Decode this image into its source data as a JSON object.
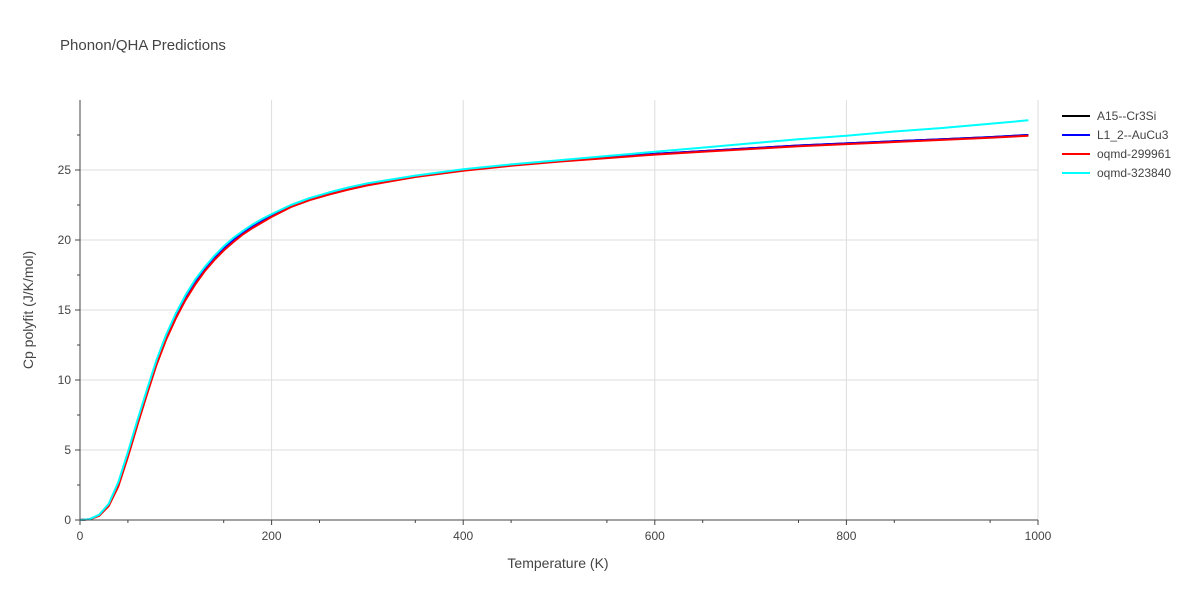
{
  "chart_data": {
    "type": "line",
    "title": "Phonon/QHA Predictions",
    "xlabel": "Temperature (K)",
    "ylabel": "Cp polyfit (J/K/mol)",
    "xlim": [
      0,
      1000
    ],
    "ylim": [
      0,
      30
    ],
    "xticks": [
      0,
      200,
      400,
      600,
      800,
      1000
    ],
    "xtick_labels": [
      "0",
      "200",
      "400",
      "600",
      "800",
      "1000"
    ],
    "yticks": [
      0,
      5,
      10,
      15,
      20,
      25
    ],
    "ytick_labels": [
      "0",
      "5",
      "10",
      "15",
      "20",
      "25"
    ],
    "grid": true,
    "legend_position": "top-right",
    "series": [
      {
        "name": "A15--Cr3Si",
        "color": "#000000",
        "x": [
          0,
          10,
          20,
          30,
          40,
          50,
          60,
          70,
          80,
          90,
          100,
          110,
          120,
          130,
          140,
          150,
          160,
          170,
          180,
          190,
          200,
          220,
          240,
          260,
          280,
          300,
          350,
          400,
          450,
          500,
          550,
          600,
          650,
          700,
          750,
          800,
          850,
          900,
          950,
          990
        ],
        "values": [
          0,
          0.05,
          0.35,
          1.1,
          2.6,
          4.7,
          7.0,
          9.2,
          11.3,
          13.1,
          14.6,
          15.9,
          17.0,
          17.9,
          18.7,
          19.4,
          20.0,
          20.5,
          20.95,
          21.35,
          21.75,
          22.4,
          22.9,
          23.3,
          23.65,
          23.95,
          24.55,
          25.0,
          25.35,
          25.65,
          25.9,
          26.15,
          26.35,
          26.55,
          26.75,
          26.9,
          27.05,
          27.2,
          27.35,
          27.5
        ]
      },
      {
        "name": "L1_2--AuCu3",
        "color": "#0000ff",
        "x": [
          0,
          10,
          20,
          30,
          40,
          50,
          60,
          70,
          80,
          90,
          100,
          110,
          120,
          130,
          140,
          150,
          160,
          170,
          180,
          190,
          200,
          220,
          240,
          260,
          280,
          300,
          350,
          400,
          450,
          500,
          550,
          600,
          650,
          700,
          750,
          800,
          850,
          900,
          950,
          990
        ],
        "values": [
          0,
          0.05,
          0.35,
          1.1,
          2.6,
          4.7,
          7.0,
          9.2,
          11.3,
          13.1,
          14.6,
          15.9,
          17.0,
          17.9,
          18.7,
          19.4,
          20.0,
          20.5,
          20.95,
          21.35,
          21.75,
          22.4,
          22.9,
          23.3,
          23.65,
          23.95,
          24.55,
          25.0,
          25.35,
          25.65,
          25.9,
          26.15,
          26.35,
          26.55,
          26.75,
          26.9,
          27.05,
          27.2,
          27.35,
          27.5
        ]
      },
      {
        "name": "oqmd-299961",
        "color": "#ff0000",
        "x": [
          0,
          10,
          20,
          30,
          40,
          50,
          60,
          70,
          80,
          90,
          100,
          110,
          120,
          130,
          140,
          150,
          160,
          170,
          180,
          190,
          200,
          220,
          240,
          260,
          280,
          300,
          350,
          400,
          450,
          500,
          550,
          600,
          650,
          700,
          750,
          800,
          850,
          900,
          950,
          990
        ],
        "values": [
          0,
          0.04,
          0.3,
          1.0,
          2.4,
          4.5,
          6.8,
          9.0,
          11.1,
          12.9,
          14.4,
          15.7,
          16.8,
          17.75,
          18.55,
          19.25,
          19.85,
          20.4,
          20.85,
          21.25,
          21.65,
          22.35,
          22.85,
          23.25,
          23.6,
          23.9,
          24.5,
          24.95,
          25.3,
          25.6,
          25.85,
          26.1,
          26.3,
          26.5,
          26.7,
          26.85,
          27.0,
          27.15,
          27.3,
          27.45
        ]
      },
      {
        "name": "oqmd-323840",
        "color": "#00ffff",
        "x": [
          0,
          10,
          20,
          30,
          40,
          50,
          60,
          70,
          80,
          90,
          100,
          110,
          120,
          130,
          140,
          150,
          160,
          170,
          180,
          190,
          200,
          220,
          240,
          260,
          280,
          300,
          350,
          400,
          450,
          500,
          550,
          600,
          650,
          700,
          750,
          800,
          850,
          900,
          950,
          990
        ],
        "values": [
          0,
          0.06,
          0.38,
          1.15,
          2.7,
          4.85,
          7.15,
          9.35,
          11.45,
          13.25,
          14.75,
          16.05,
          17.15,
          18.05,
          18.85,
          19.55,
          20.15,
          20.65,
          21.1,
          21.5,
          21.85,
          22.5,
          23.0,
          23.4,
          23.75,
          24.05,
          24.6,
          25.05,
          25.4,
          25.7,
          26.0,
          26.3,
          26.6,
          26.9,
          27.2,
          27.45,
          27.75,
          28.0,
          28.3,
          28.55
        ]
      }
    ]
  }
}
